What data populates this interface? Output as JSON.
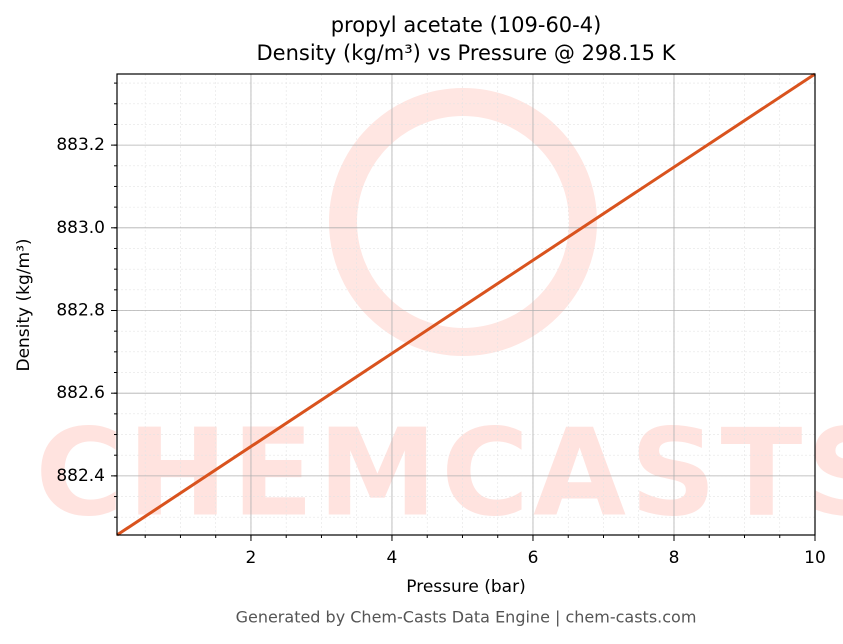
{
  "chart_data": {
    "type": "line",
    "title": "propyl acetate (109-60-4)",
    "subtitle": "Density (kg/m³) vs Pressure @ 298.15 K",
    "x_label": "Pressure (bar)",
    "y_label": "Density (kg/m³)",
    "watermark": "CHEMCASTS",
    "footer": "Generated by Chem-Casts Data Engine | chem-casts.com",
    "x": [
      0.1,
      10
    ],
    "series": [
      {
        "name": "Density",
        "color": "#d9531e",
        "values": [
          882.257,
          883.372
        ]
      }
    ],
    "xlim": [
      0.1,
      10
    ],
    "xticks": [
      2,
      4,
      6,
      8,
      10
    ],
    "ylim": [
      882.257,
      883.372
    ],
    "yticks": [
      882.4,
      882.6,
      882.8,
      {
        "value": 883.0,
        "label": "883.0"
      },
      883.2
    ],
    "grid": true
  }
}
